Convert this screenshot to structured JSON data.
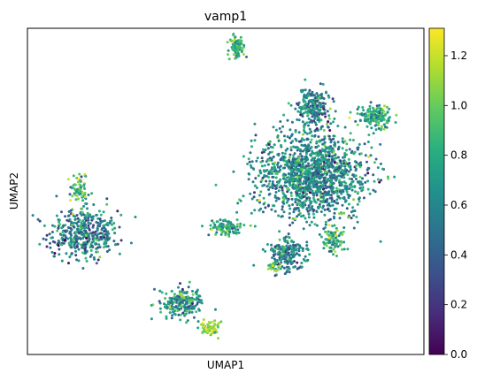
{
  "chart_data": {
    "type": "scatter",
    "title": "vamp1",
    "xlabel": "UMAP1",
    "ylabel": "UMAP2",
    "x_ticks": [],
    "y_ticks": [],
    "xlim": [
      0,
      100
    ],
    "ylim": [
      0,
      100
    ],
    "colorbar": {
      "colormap": "viridis",
      "min": 0.0,
      "max": 1.31,
      "ticks": [
        0.0,
        0.2,
        0.4,
        0.6,
        0.8,
        1.0,
        1.2
      ],
      "tick_labels": [
        "0.0",
        "0.2",
        "0.4",
        "0.6",
        "0.8",
        "1.0",
        "1.2"
      ]
    },
    "clusters": [
      {
        "cx": 14,
        "cy": 37,
        "rx": 8,
        "ry": 7,
        "n": 420,
        "mean": 0.55,
        "sd": 0.22
      },
      {
        "cx": 13,
        "cy": 50,
        "rx": 2,
        "ry": 6,
        "n": 70,
        "mean": 0.85,
        "sd": 0.2
      },
      {
        "cx": 53,
        "cy": 94,
        "rx": 1.8,
        "ry": 3.2,
        "n": 90,
        "mean": 0.85,
        "sd": 0.15
      },
      {
        "cx": 72,
        "cy": 55,
        "rx": 13,
        "ry": 12,
        "n": 1400,
        "mean": 0.62,
        "sd": 0.2
      },
      {
        "cx": 72,
        "cy": 76,
        "rx": 4,
        "ry": 5,
        "n": 220,
        "mean": 0.58,
        "sd": 0.2
      },
      {
        "cx": 88,
        "cy": 73,
        "rx": 3.5,
        "ry": 3,
        "n": 150,
        "mean": 0.8,
        "sd": 0.18
      },
      {
        "cx": 66,
        "cy": 31,
        "rx": 4.5,
        "ry": 4.5,
        "n": 200,
        "mean": 0.55,
        "sd": 0.2
      },
      {
        "cx": 77,
        "cy": 35,
        "rx": 2.5,
        "ry": 3.5,
        "n": 80,
        "mean": 0.8,
        "sd": 0.2
      },
      {
        "cx": 50,
        "cy": 39,
        "rx": 3.5,
        "ry": 2.5,
        "n": 110,
        "mean": 0.78,
        "sd": 0.18
      },
      {
        "cx": 39,
        "cy": 16,
        "rx": 5,
        "ry": 4.5,
        "n": 200,
        "mean": 0.72,
        "sd": 0.2
      },
      {
        "cx": 46,
        "cy": 8,
        "rx": 2,
        "ry": 2,
        "n": 70,
        "mean": 1.1,
        "sd": 0.12
      },
      {
        "cx": 62,
        "cy": 27,
        "rx": 1.5,
        "ry": 1.5,
        "n": 25,
        "mean": 0.95,
        "sd": 0.15
      }
    ],
    "notes": "Single-cell UMAP embedding colored by vamp1 expression (0–~1.3, viridis). Cluster centers and spreads are approximate."
  }
}
